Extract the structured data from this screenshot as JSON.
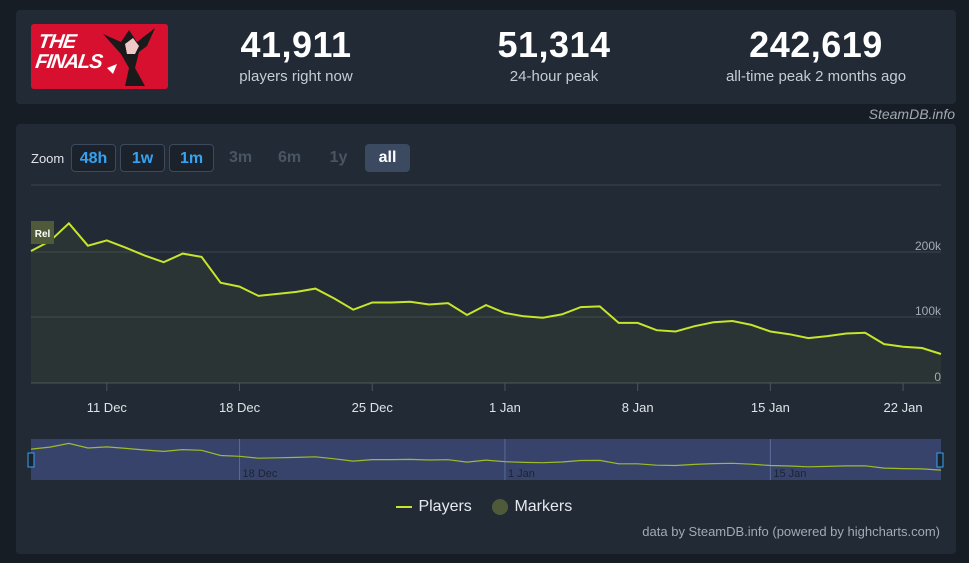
{
  "header": {
    "game_logo_text": "THE FINALS",
    "stats": [
      {
        "value": "41,911",
        "label": "players right now"
      },
      {
        "value": "51,314",
        "label": "24-hour peak"
      },
      {
        "value": "242,619",
        "label": "all-time peak 2 months ago"
      }
    ],
    "credit": "SteamDB.info"
  },
  "zoom": {
    "label": "Zoom",
    "buttons": [
      {
        "label": "48h",
        "state": "active"
      },
      {
        "label": "1w",
        "state": "active"
      },
      {
        "label": "1m",
        "state": "active"
      },
      {
        "label": "3m",
        "state": "disabled"
      },
      {
        "label": "6m",
        "state": "disabled"
      },
      {
        "label": "1y",
        "state": "disabled"
      },
      {
        "label": "all",
        "state": "selected"
      }
    ]
  },
  "chart_data": {
    "type": "line",
    "series": [
      {
        "name": "Players",
        "color": "#c6e52b",
        "points": [
          [
            "2023-12-07",
            200000
          ],
          [
            "2023-12-08",
            215000
          ],
          [
            "2023-12-09",
            242000
          ],
          [
            "2023-12-10",
            208000
          ],
          [
            "2023-12-11",
            216000
          ],
          [
            "2023-12-12",
            205000
          ],
          [
            "2023-12-13",
            193000
          ],
          [
            "2023-12-14",
            183000
          ],
          [
            "2023-12-15",
            196000
          ],
          [
            "2023-12-16",
            191000
          ],
          [
            "2023-12-17",
            152000
          ],
          [
            "2023-12-18",
            146000
          ],
          [
            "2023-12-19",
            132000
          ],
          [
            "2023-12-20",
            135000
          ],
          [
            "2023-12-21",
            138000
          ],
          [
            "2023-12-22",
            143000
          ],
          [
            "2023-12-23",
            128000
          ],
          [
            "2023-12-24",
            111000
          ],
          [
            "2023-12-25",
            122000
          ],
          [
            "2023-12-26",
            122000
          ],
          [
            "2023-12-27",
            123000
          ],
          [
            "2023-12-28",
            119000
          ],
          [
            "2023-12-29",
            121000
          ],
          [
            "2023-12-30",
            103000
          ],
          [
            "2023-12-31",
            118000
          ],
          [
            "2024-01-01",
            106000
          ],
          [
            "2024-01-02",
            101000
          ],
          [
            "2024-01-03",
            99000
          ],
          [
            "2024-01-04",
            104000
          ],
          [
            "2024-01-05",
            115000
          ],
          [
            "2024-01-06",
            116000
          ],
          [
            "2024-01-07",
            91000
          ],
          [
            "2024-01-08",
            91000
          ],
          [
            "2024-01-09",
            80000
          ],
          [
            "2024-01-10",
            78000
          ],
          [
            "2024-01-11",
            86000
          ],
          [
            "2024-01-12",
            92000
          ],
          [
            "2024-01-13",
            94000
          ],
          [
            "2024-01-14",
            88000
          ],
          [
            "2024-01-15",
            78000
          ],
          [
            "2024-01-16",
            74000
          ],
          [
            "2024-01-17",
            68000
          ],
          [
            "2024-01-18",
            71000
          ],
          [
            "2024-01-19",
            75000
          ],
          [
            "2024-01-20",
            76000
          ],
          [
            "2024-01-21",
            59000
          ],
          [
            "2024-01-22",
            55000
          ],
          [
            "2024-01-23",
            53000
          ],
          [
            "2024-01-24",
            44000
          ]
        ]
      }
    ],
    "x_ticks": [
      "11 Dec",
      "18 Dec",
      "25 Dec",
      "1 Jan",
      "8 Jan",
      "15 Jan",
      "22 Jan"
    ],
    "y_ticks": [
      "0",
      "100k",
      "200k"
    ],
    "ylim": [
      0,
      300000
    ],
    "marker_label": "Rel",
    "navigator_ticks": [
      "18 Dec",
      "1 Jan",
      "15 Jan"
    ],
    "legend": [
      "Players",
      "Markers"
    ],
    "marker_color": "#4e5a3a",
    "grid": true
  },
  "footer": {
    "credit": "data by SteamDB.info (powered by highcharts.com)"
  }
}
